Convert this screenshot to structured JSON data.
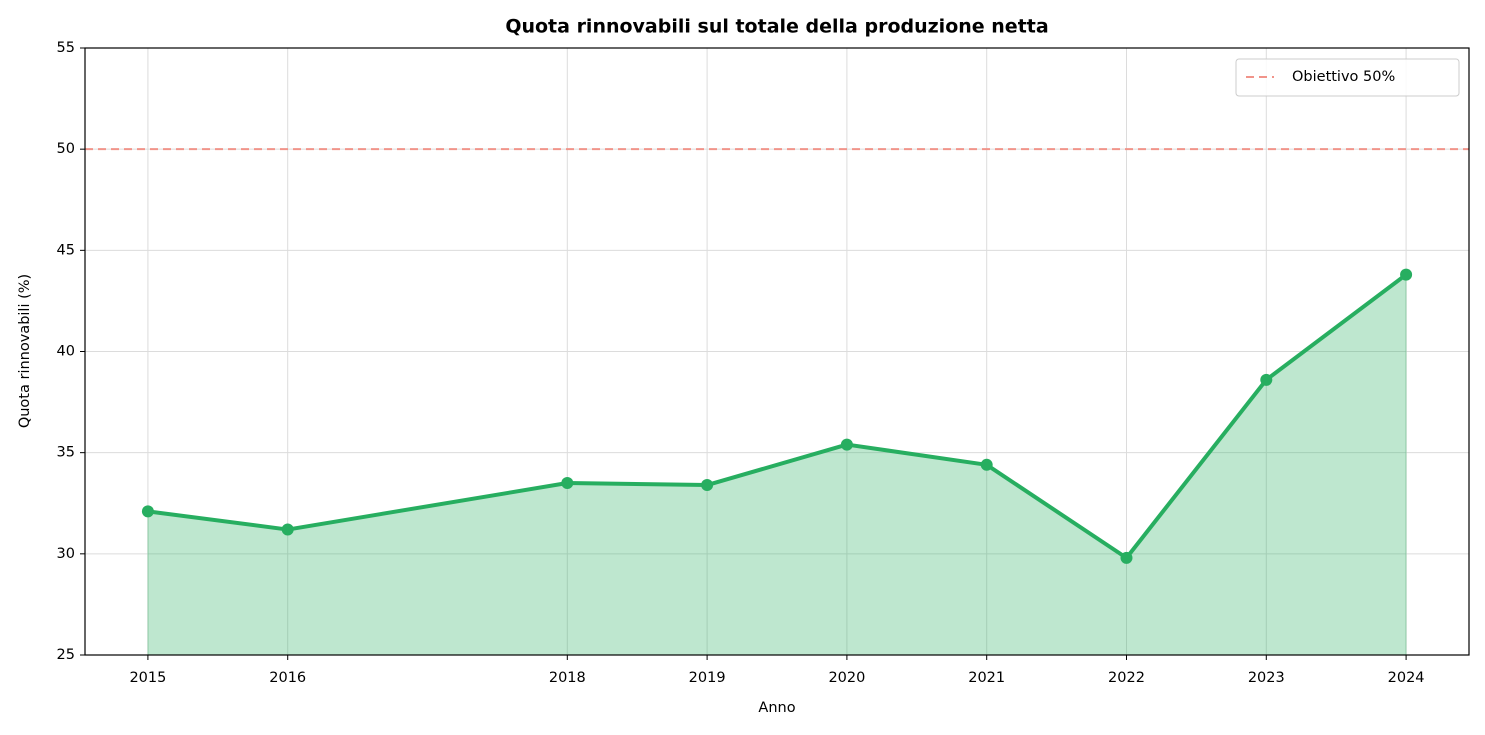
{
  "chart_data": {
    "type": "line",
    "title": "Quota rinnovabili sul totale della produzione netta",
    "x_label": "Anno",
    "y_label": "Quota rinnovabili (%)",
    "x": [
      2015,
      2016,
      2018,
      2019,
      2020,
      2021,
      2022,
      2023,
      2024
    ],
    "series": [
      {
        "name": null,
        "color": "#27ae60",
        "values": [
          32.1,
          31.2,
          33.5,
          33.4,
          35.4,
          34.4,
          29.8,
          38.6,
          43.8
        ],
        "fill": true
      }
    ],
    "reference_lines": [
      {
        "value": 50,
        "label": "Obiettivo 50%",
        "color": "#f1948a"
      }
    ],
    "xlim": [
      2014.55,
      2024.45
    ],
    "xticks": [
      2015,
      2016,
      2018,
      2019,
      2020,
      2021,
      2022,
      2023,
      2024
    ],
    "ylim": [
      25,
      55
    ],
    "yticks": [
      25,
      30,
      35,
      40,
      45,
      50,
      55
    ],
    "grid": true,
    "legend_position": "upper right"
  }
}
